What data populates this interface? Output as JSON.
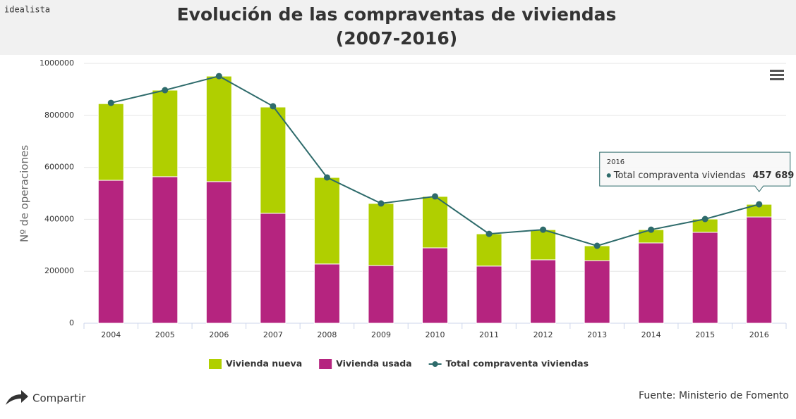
{
  "brand": "idealista",
  "chart_data": {
    "type": "bar",
    "title": [
      "Evolución de las compraventas de viviendas",
      "(2007-2016)"
    ],
    "y_label": "Nº de operaciones",
    "categories": [
      "2004",
      "2005",
      "2006",
      "2007",
      "2008",
      "2009",
      "2010",
      "2011",
      "2012",
      "2013",
      "2014",
      "2015",
      "2016"
    ],
    "series": [
      {
        "name": "Vivienda nueva",
        "type": "bar",
        "color": "#b0cf00",
        "values": [
          295000,
          333000,
          406000,
          409000,
          333000,
          239000,
          198000,
          124000,
          116000,
          57000,
          51000,
          51000,
          48689
        ]
      },
      {
        "name": "Vivienda usada",
        "type": "bar",
        "color": "#b5247f",
        "values": [
          550000,
          564000,
          545000,
          423000,
          228000,
          222000,
          290000,
          220000,
          244000,
          241000,
          309000,
          350000,
          409000
        ]
      },
      {
        "name": "Total compraventa viviendas",
        "type": "line",
        "color": "#2e6b6b",
        "values": [
          848000,
          897000,
          951000,
          835000,
          561000,
          461000,
          488000,
          344000,
          360000,
          298000,
          360000,
          401000,
          457689
        ],
        "value_labels": [
          null,
          null,
          null,
          null,
          null,
          null,
          null,
          null,
          null,
          null,
          null,
          null,
          "457 689"
        ]
      }
    ],
    "ylim": [
      0,
      1000000
    ],
    "yticks": [
      0,
      200000,
      400000,
      600000,
      800000,
      1000000
    ],
    "grid": true,
    "legend": "bottom"
  },
  "share": "Compartir",
  "source": "Fuente: Ministerio de Fomento"
}
